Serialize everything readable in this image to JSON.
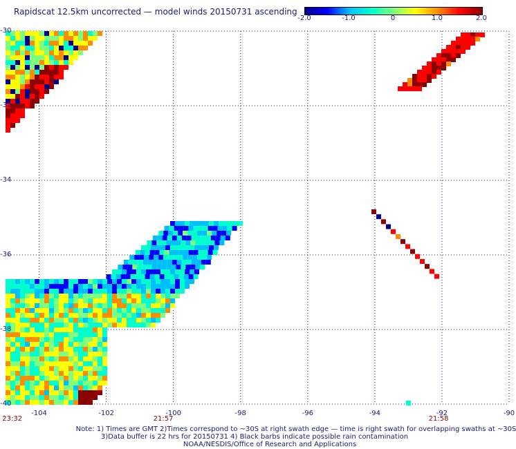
{
  "title": "Rapidscat 12.5km uncorrected — model winds 20150731 ascending",
  "colorbar": {
    "ticks": [
      "-2.0",
      "-1.0",
      "0",
      "1.0",
      "2.0"
    ],
    "tick_values": [
      -2.0,
      -1.0,
      0.0,
      1.0,
      2.0
    ],
    "range": [
      -2.0,
      2.0
    ],
    "colors": [
      "#00008b",
      "#0000ff",
      "#00bfff",
      "#00ffcc",
      "#7fff7f",
      "#ffff00",
      "#ff8c00",
      "#ff0000",
      "#8b0000"
    ]
  },
  "map": {
    "lat_range": [
      -40,
      -30
    ],
    "lon_range": [
      -105,
      -90
    ],
    "lat_labels": [
      "-30",
      "-32",
      "-34",
      "-36",
      "-38",
      "-40"
    ],
    "lon_labels": [
      "-104",
      "-102",
      "-100",
      "-98",
      "-96",
      "-94",
      "-92",
      "-90"
    ],
    "lat_values": [
      -30,
      -32,
      -34,
      -36,
      -38,
      -40
    ],
    "lon_values": [
      -104,
      -102,
      -100,
      -98,
      -96,
      -94,
      -92,
      -90
    ],
    "grid": "dotted",
    "time_labels": [
      {
        "text": "23:32",
        "lon": -104.8
      },
      {
        "text": "21:57",
        "lon": -100.3
      },
      {
        "text": "21:58",
        "lon": -92.1
      }
    ]
  },
  "chart_data": {
    "type": "heatmap",
    "title": "Rapidscat 12.5km uncorrected — model winds 20150731 ascending",
    "swaths": [
      {
        "region": "top-left",
        "lat_range": [
          -33,
          -30
        ],
        "lon_range": [
          -105,
          -102
        ],
        "value_range": [
          -2.0,
          2.0
        ]
      },
      {
        "region": "top-right",
        "lat_range": [
          -31.5,
          -30
        ],
        "lon_range": [
          -93.2,
          -90.9
        ],
        "value_range": [
          1.0,
          2.0
        ]
      },
      {
        "region": "middle-right",
        "lat_range": [
          -36.8,
          -34.9
        ],
        "lon_range": [
          -94.1,
          -92.0
        ],
        "value_range": [
          -2.0,
          2.0
        ]
      },
      {
        "region": "bottom-left",
        "lat_range": [
          -40,
          -34.8
        ],
        "lon_range": [
          -105,
          -98
        ],
        "value_range": [
          -2.0,
          2.0
        ]
      }
    ]
  },
  "notes": [
    "Note: 1) Times are GMT 2)Times correspond to ~30S at right swath edge — time is right swath for overlapping swaths at ~30S",
    "3)Data buffer is 22 hrs for 20150731 4) Black barbs indicate possible rain contamination",
    "NOAA/NESDIS/Office of Research and Applications"
  ]
}
